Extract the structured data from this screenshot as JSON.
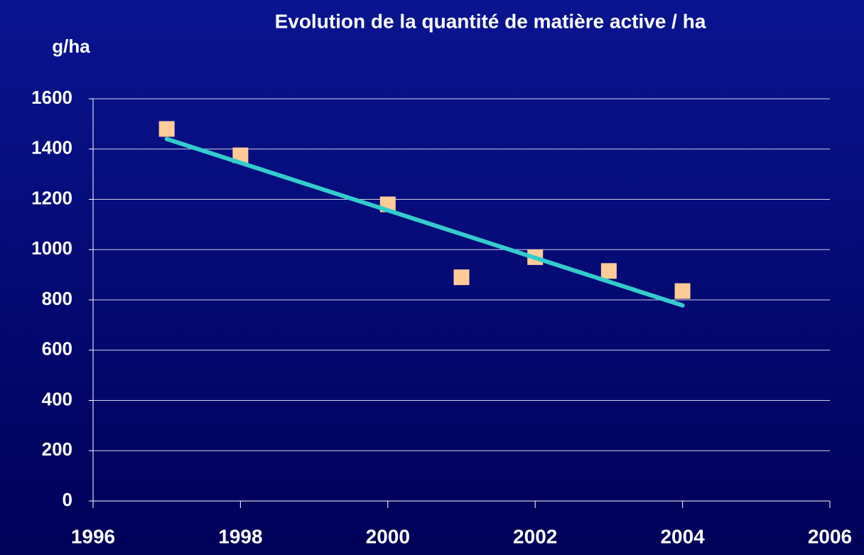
{
  "chart_data": {
    "type": "scatter",
    "title": "Evolution de la quantité de matière active / ha",
    "y_label": "g/ha",
    "series": [
      {
        "style": "markers",
        "color": "#ffcc99",
        "x": [
          1997,
          1998,
          2000,
          2001,
          2002,
          2003,
          2004
        ],
        "values": [
          1480,
          1375,
          1180,
          890,
          970,
          915,
          835
        ]
      },
      {
        "style": "line",
        "color": "#33cccc",
        "x": [
          1997,
          2004
        ],
        "values": [
          1440,
          778
        ]
      }
    ],
    "xlim": [
      1996,
      2006
    ],
    "xticks": [
      1996,
      1998,
      2000,
      2002,
      2004,
      2006
    ],
    "ylim": [
      0,
      1600
    ],
    "yticks": [
      0,
      200,
      400,
      600,
      800,
      1000,
      1200,
      1400,
      1600
    ],
    "grid": true
  }
}
